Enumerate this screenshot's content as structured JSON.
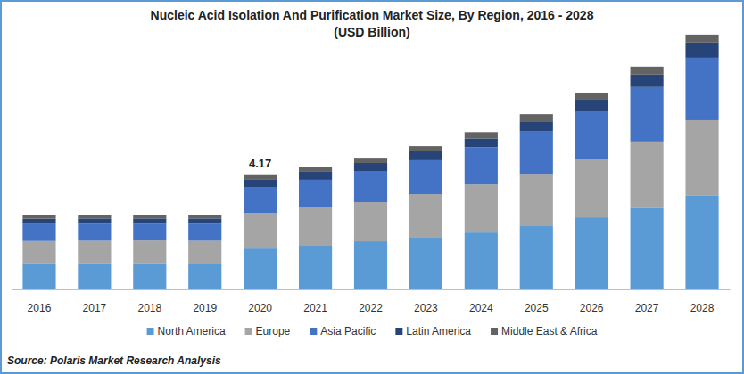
{
  "chart_data": {
    "type": "bar",
    "title": "Nucleic Acid Isolation And Purification Market Size, By Region, 2016 - 2028",
    "subtitle": "(USD Billion)",
    "source": "Source: Polaris Market Research Analysis",
    "categories": [
      "2016",
      "2017",
      "2018",
      "2019",
      "2020",
      "2021",
      "2022",
      "2023",
      "2024",
      "2025",
      "2026",
      "2027",
      "2028"
    ],
    "series": [
      {
        "name": "North America",
        "color": "#5b9bd5",
        "values": [
          0.94,
          0.94,
          0.94,
          0.92,
          1.48,
          1.58,
          1.74,
          1.87,
          2.06,
          2.29,
          2.61,
          2.94,
          3.39
        ]
      },
      {
        "name": "Europe",
        "color": "#a5a5a5",
        "values": [
          0.81,
          0.82,
          0.83,
          0.84,
          1.29,
          1.39,
          1.42,
          1.58,
          1.74,
          1.9,
          2.1,
          2.42,
          2.74
        ]
      },
      {
        "name": "Asia Pacific",
        "color": "#4472c4",
        "values": [
          0.65,
          0.65,
          0.64,
          0.65,
          0.94,
          1.0,
          1.13,
          1.23,
          1.35,
          1.55,
          1.74,
          1.97,
          2.26
        ]
      },
      {
        "name": "Latin America",
        "color": "#264478",
        "values": [
          0.16,
          0.16,
          0.16,
          0.16,
          0.26,
          0.29,
          0.29,
          0.32,
          0.32,
          0.35,
          0.42,
          0.45,
          0.55
        ]
      },
      {
        "name": "Middle East & Africa",
        "color": "#636363",
        "values": [
          0.13,
          0.13,
          0.13,
          0.13,
          0.2,
          0.16,
          0.19,
          0.19,
          0.23,
          0.26,
          0.26,
          0.29,
          0.29
        ]
      }
    ],
    "annotations": [
      {
        "text": "4.17",
        "x": "2020",
        "y": 4.17
      }
    ],
    "ylim": [
      0,
      9.5
    ],
    "yticks": [],
    "stacked": true,
    "legend": "bottom",
    "tick_labels": "x",
    "grid": false
  }
}
